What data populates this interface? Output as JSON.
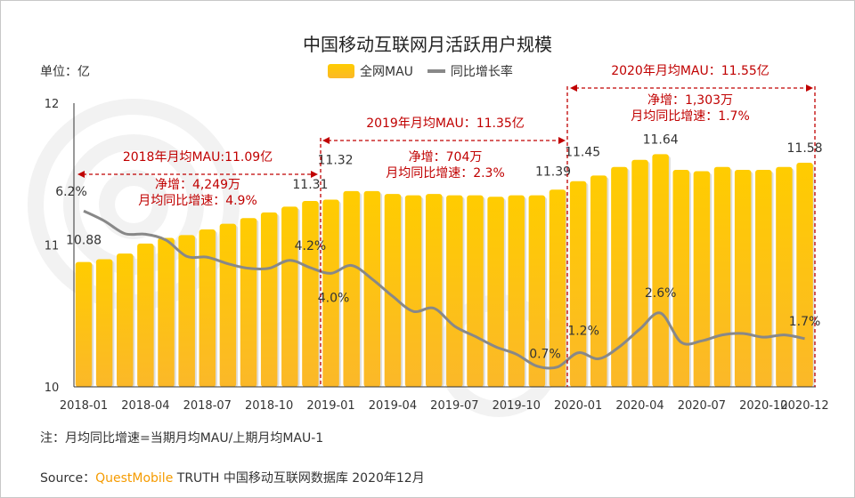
{
  "title": "中国移动互联网月活跃用户规模",
  "unit_label": "单位：亿",
  "legend": {
    "bars": "全网MAU",
    "line": "同比增长率"
  },
  "note": "注：月均同比增速=当期月均MAU/上期月均MAU-1",
  "source": {
    "prefix": "Source：",
    "brand": "QuestMobile",
    "rest": " TRUTH 中国移动互联网数据库 2020年12月"
  },
  "colors": {
    "bar_top": "#ffcc00",
    "bar_bottom": "#fbb829",
    "line": "#888888",
    "annotation": "#c00000",
    "brand": "#f59b00"
  },
  "annotations": [
    {
      "title": "2018年月均MAU:11.09亿",
      "net": "净增：4,249万",
      "growth": "月均同比增速：4.9%"
    },
    {
      "title": "2019年月均MAU：11.35亿",
      "net": "净增：704万",
      "growth": "月均同比增速：2.3%"
    },
    {
      "title": "2020年月均MAU：11.55亿",
      "net": "净增：1,303万",
      "growth": "月均同比增速：1.7%"
    }
  ],
  "chart_data": {
    "type": "bar+line",
    "title": "中国移动互联网月活跃用户规模",
    "ylabel": "单位：亿",
    "ylim": [
      10,
      12
    ],
    "yticks": [
      "10",
      "11",
      "12"
    ],
    "y2lim": [
      0,
      10
    ],
    "grid": false,
    "legend_position": "top",
    "categories": [
      "2018-01",
      "2018-02",
      "2018-03",
      "2018-04",
      "2018-05",
      "2018-06",
      "2018-07",
      "2018-08",
      "2018-09",
      "2018-10",
      "2018-11",
      "2018-12",
      "2019-01",
      "2019-02",
      "2019-03",
      "2019-04",
      "2019-05",
      "2019-06",
      "2019-07",
      "2019-08",
      "2019-09",
      "2019-10",
      "2019-11",
      "2019-12",
      "2020-01",
      "2020-02",
      "2020-03",
      "2020-04",
      "2020-05",
      "2020-06",
      "2020-07",
      "2020-08",
      "2020-09",
      "2020-10",
      "2020-11",
      "2020-12"
    ],
    "xtick_labels": [
      "2018-01",
      "2018-04",
      "2018-07",
      "2018-10",
      "2019-01",
      "2019-04",
      "2019-07",
      "2019-10",
      "2020-01",
      "2020-04",
      "2020-07",
      "2020-10",
      "2020-12"
    ],
    "series": [
      {
        "name": "全网MAU",
        "type": "bar",
        "values": [
          10.88,
          10.9,
          10.94,
          11.01,
          11.05,
          11.07,
          11.11,
          11.15,
          11.19,
          11.23,
          11.27,
          11.31,
          11.32,
          11.38,
          11.38,
          11.36,
          11.35,
          11.36,
          11.35,
          11.35,
          11.34,
          11.35,
          11.35,
          11.39,
          11.45,
          11.49,
          11.55,
          11.6,
          11.64,
          11.53,
          11.52,
          11.55,
          11.53,
          11.53,
          11.55,
          11.58
        ]
      },
      {
        "name": "同比增长率",
        "type": "line",
        "unit": "%",
        "values": [
          6.2,
          5.85,
          5.4,
          5.38,
          5.17,
          4.6,
          4.57,
          4.34,
          4.18,
          4.18,
          4.46,
          4.2,
          4.0,
          4.28,
          3.8,
          3.19,
          2.66,
          2.77,
          2.14,
          1.78,
          1.41,
          1.15,
          0.73,
          0.7,
          1.2,
          0.99,
          1.41,
          2.04,
          2.6,
          1.57,
          1.62,
          1.83,
          1.88,
          1.75,
          1.83,
          1.7
        ]
      }
    ],
    "bar_labels": [
      {
        "index": 0,
        "text": "10.88"
      },
      {
        "index": 11,
        "text": "11.31"
      },
      {
        "index": 12,
        "text": "11.32"
      },
      {
        "index": 23,
        "text": "11.39"
      },
      {
        "index": 24,
        "text": "11.45"
      },
      {
        "index": 28,
        "text": "11.64"
      },
      {
        "index": 35,
        "text": "11.58"
      }
    ],
    "line_labels": [
      {
        "index": 0,
        "text": "6.2%"
      },
      {
        "index": 11,
        "text": "4.2%"
      },
      {
        "index": 12,
        "text": "4.0%"
      },
      {
        "index": 23,
        "text": "0.7%"
      },
      {
        "index": 24,
        "text": "1.2%"
      },
      {
        "index": 28,
        "text": "2.6%"
      },
      {
        "index": 35,
        "text": "1.7%"
      }
    ]
  }
}
